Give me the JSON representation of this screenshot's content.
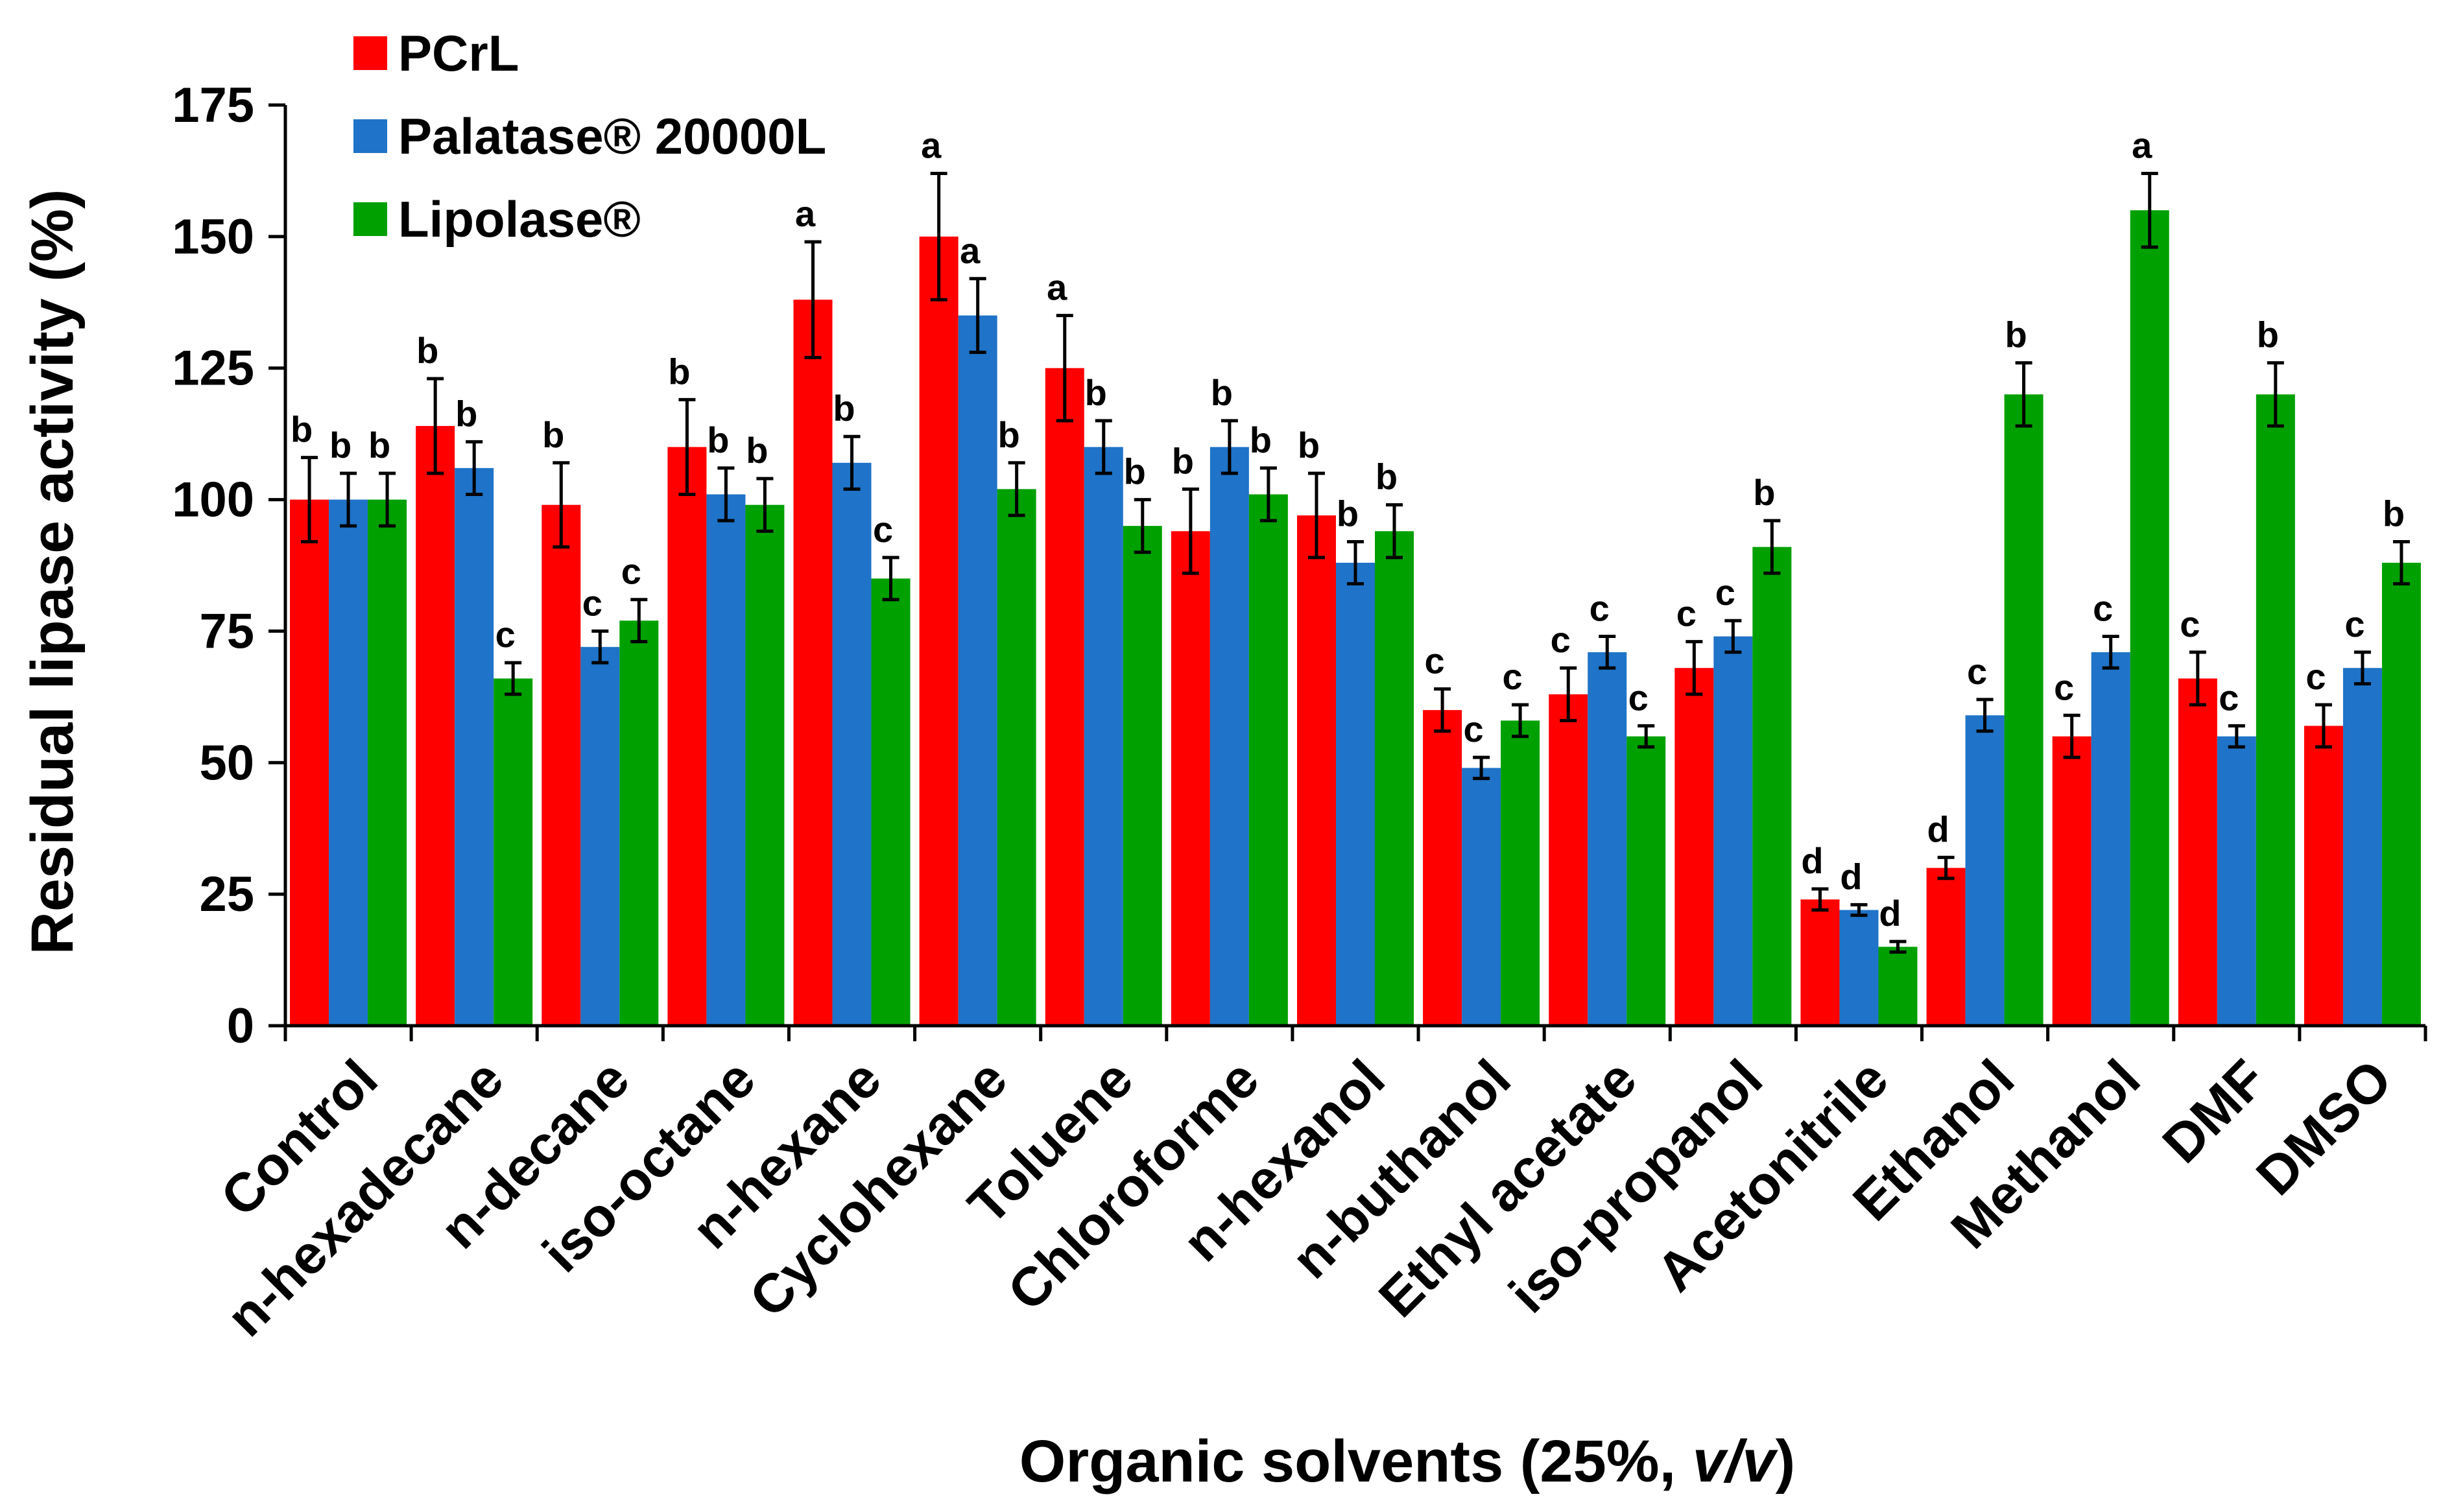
{
  "chart_data": {
    "type": "bar",
    "title": "",
    "xlabel": "Organic solvents (25%, v/v)",
    "xlabel_parts": {
      "prefix": "Organic solvents (25%, ",
      "italic": "v/v",
      "suffix": ")"
    },
    "ylabel": "Residual lipase activity (%)",
    "ylim": [
      0,
      175
    ],
    "yticks": [
      0,
      25,
      50,
      75,
      100,
      125,
      150,
      175
    ],
    "ytick_labels": [
      "0",
      "25",
      "50",
      "75",
      "100",
      "125",
      "150",
      "175"
    ],
    "grid": false,
    "legend_position": "top-left",
    "categories": [
      "Control",
      "n-hexadecane",
      "n-decane",
      "iso-octane",
      "n-hexane",
      "Cyclohexane",
      "Toluene",
      "Chloroforme",
      "n-hexanol",
      "n-buthanol",
      "Ethyl acetate",
      "iso-propanol",
      "Acetonitrile",
      "Ethanol",
      "Methanol",
      "DMF",
      "DMSO"
    ],
    "series": [
      {
        "name": "PCrL",
        "color": "#ff0000",
        "values": [
          100,
          114,
          99,
          110,
          138,
          150,
          125,
          94,
          97,
          60,
          63,
          68,
          24,
          30,
          55,
          66,
          57
        ],
        "errors": [
          8,
          9,
          8,
          9,
          11,
          12,
          10,
          8,
          8,
          4,
          5,
          5,
          2,
          2,
          4,
          5,
          4
        ],
        "letters": [
          "b",
          "b",
          "b",
          "b",
          "a",
          "a",
          "a",
          "b",
          "b",
          "c",
          "c",
          "c",
          "d",
          "d",
          "c",
          "c",
          "c"
        ]
      },
      {
        "name": "Palatase® 20000L",
        "color": "#1f73c8",
        "values": [
          100,
          106,
          72,
          101,
          107,
          135,
          110,
          110,
          88,
          49,
          71,
          74,
          22,
          59,
          71,
          55,
          68
        ],
        "errors": [
          5,
          5,
          3,
          5,
          5,
          7,
          5,
          5,
          4,
          2,
          3,
          3,
          1,
          3,
          3,
          2,
          3
        ],
        "letters": [
          "b",
          "b",
          "c",
          "b",
          "b",
          "a",
          "b",
          "b",
          "b",
          "c",
          "c",
          "c",
          "d",
          "c",
          "c",
          "c",
          "c"
        ]
      },
      {
        "name": "Lipolase®",
        "color": "#00a000",
        "values": [
          100,
          66,
          77,
          99,
          85,
          102,
          95,
          101,
          94,
          58,
          55,
          91,
          15,
          120,
          155,
          120,
          88
        ],
        "errors": [
          5,
          3,
          4,
          5,
          4,
          5,
          5,
          5,
          5,
          3,
          2,
          5,
          1,
          6,
          7,
          6,
          4
        ],
        "letters": [
          "b",
          "c",
          "c",
          "b",
          "c",
          "b",
          "b",
          "b",
          "b",
          "c",
          "c",
          "b",
          "d",
          "b",
          "a",
          "b",
          "b"
        ]
      }
    ]
  }
}
